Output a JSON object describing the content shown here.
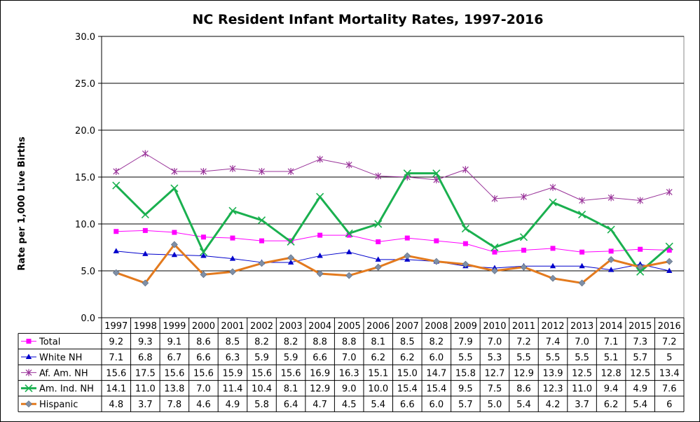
{
  "chart_data": {
    "type": "line",
    "title": "NC Resident Infant Mortality Rates, 1997-2016",
    "ylabel": "Rate per 1,000 Live Births",
    "xlabel": "",
    "ylim": [
      0,
      30
    ],
    "yticks": [
      "0.0",
      "5.0",
      "10.0",
      "15.0",
      "20.0",
      "25.0",
      "30.0"
    ],
    "grid": true,
    "legend": "data-table",
    "categories": [
      "1997",
      "1998",
      "1999",
      "2000",
      "2001",
      "2002",
      "2003",
      "2004",
      "2005",
      "2006",
      "2007",
      "2008",
      "2009",
      "2010",
      "2011",
      "2012",
      "2013",
      "2014",
      "2015",
      "2016"
    ],
    "series": [
      {
        "name": "Total",
        "color": "#ff00ff",
        "marker": "square",
        "values": [
          9.2,
          9.3,
          9.1,
          8.6,
          8.5,
          8.2,
          8.2,
          8.8,
          8.8,
          8.1,
          8.5,
          8.2,
          7.9,
          7.0,
          7.2,
          7.4,
          7.0,
          7.1,
          7.3,
          7.2
        ],
        "labels": [
          "9.2",
          "9.3",
          "9.1",
          "8.6",
          "8.5",
          "8.2",
          "8.2",
          "8.8",
          "8.8",
          "8.1",
          "8.5",
          "8.2",
          "7.9",
          "7.0",
          "7.2",
          "7.4",
          "7.0",
          "7.1",
          "7.3",
          "7.2"
        ]
      },
      {
        "name": "White NH",
        "color": "#0000cc",
        "marker": "triangle",
        "values": [
          7.1,
          6.8,
          6.7,
          6.6,
          6.3,
          5.9,
          5.9,
          6.6,
          7.0,
          6.2,
          6.2,
          6.0,
          5.5,
          5.3,
          5.5,
          5.5,
          5.5,
          5.1,
          5.7,
          5
        ],
        "labels": [
          "7.1",
          "6.8",
          "6.7",
          "6.6",
          "6.3",
          "5.9",
          "5.9",
          "6.6",
          "7.0",
          "6.2",
          "6.2",
          "6.0",
          "5.5",
          "5.3",
          "5.5",
          "5.5",
          "5.5",
          "5.1",
          "5.7",
          "5"
        ]
      },
      {
        "name": "Af. Am. NH",
        "color": "#993399",
        "marker": "asterisk",
        "values": [
          15.6,
          17.5,
          15.6,
          15.6,
          15.9,
          15.6,
          15.6,
          16.9,
          16.3,
          15.1,
          15.0,
          14.7,
          15.8,
          12.7,
          12.9,
          13.9,
          12.5,
          12.8,
          12.5,
          13.4
        ],
        "labels": [
          "15.6",
          "17.5",
          "15.6",
          "15.6",
          "15.9",
          "15.6",
          "15.6",
          "16.9",
          "16.3",
          "15.1",
          "15.0",
          "14.7",
          "15.8",
          "12.7",
          "12.9",
          "13.9",
          "12.5",
          "12.8",
          "12.5",
          "13.4"
        ]
      },
      {
        "name": "Am. Ind. NH",
        "color": "#1ab04f",
        "marker": "x",
        "values": [
          14.1,
          11.0,
          13.8,
          7.0,
          11.4,
          10.4,
          8.1,
          12.9,
          9.0,
          10.0,
          15.4,
          15.4,
          9.5,
          7.5,
          8.6,
          12.3,
          11.0,
          9.4,
          4.9,
          7.6
        ],
        "labels": [
          "14.1",
          "11.0",
          "13.8",
          "7.0",
          "11.4",
          "10.4",
          "8.1",
          "12.9",
          "9.0",
          "10.0",
          "15.4",
          "15.4",
          "9.5",
          "7.5",
          "8.6",
          "12.3",
          "11.0",
          "9.4",
          "4.9",
          "7.6"
        ]
      },
      {
        "name": "Hispanic",
        "color": "#e37a1e",
        "marker": "diamond",
        "values": [
          4.8,
          3.7,
          7.8,
          4.6,
          4.9,
          5.8,
          6.4,
          4.7,
          4.5,
          5.4,
          6.6,
          6.0,
          5.7,
          5.0,
          5.4,
          4.2,
          3.7,
          6.2,
          5.4,
          6
        ],
        "labels": [
          "4.8",
          "3.7",
          "7.8",
          "4.6",
          "4.9",
          "5.8",
          "6.4",
          "4.7",
          "4.5",
          "5.4",
          "6.6",
          "6.0",
          "5.7",
          "5.0",
          "5.4",
          "4.2",
          "3.7",
          "6.2",
          "5.4",
          "6"
        ]
      }
    ]
  }
}
